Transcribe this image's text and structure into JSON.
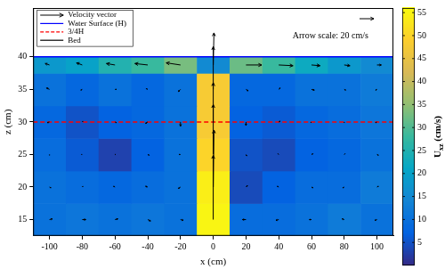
{
  "chart_data": {
    "type": "heatmap",
    "x_label": "x (cm)",
    "y_label": "z (cm)",
    "xlim": [
      -110,
      110
    ],
    "xticks": [
      -100,
      -80,
      -60,
      -40,
      -20,
      0,
      20,
      40,
      60,
      80,
      100
    ],
    "ylim": [
      12.5,
      47.5
    ],
    "yticks": [
      15,
      20,
      25,
      30,
      35,
      40
    ],
    "grid": false,
    "legend": "upper left",
    "x_edges": [
      -110,
      -90,
      -70,
      -50,
      -30,
      -10,
      10,
      30,
      50,
      70,
      90,
      110
    ],
    "z_edges": [
      12.5,
      17.5,
      22.5,
      27.5,
      32.5,
      37.5,
      40
    ],
    "cells": [
      [
        10,
        11,
        10,
        11,
        10,
        55,
        9,
        9,
        10,
        12,
        10
      ],
      [
        10,
        9,
        8,
        9,
        10,
        54,
        4,
        7,
        9,
        9,
        12
      ],
      [
        9,
        6,
        3,
        7,
        10,
        50,
        5,
        4,
        7,
        8,
        10
      ],
      [
        8,
        5,
        7,
        8,
        10,
        48,
        7,
        6,
        8,
        9,
        11
      ],
      [
        10,
        8,
        10,
        8,
        10,
        48,
        8,
        8,
        10,
        10,
        12
      ],
      [
        18,
        20,
        25,
        28,
        33,
        15,
        32,
        28,
        22,
        18,
        15
      ]
    ],
    "vectors": {
      "name": "Velocity vector",
      "color": "#000000",
      "u": [
        [
          4,
          5,
          4,
          4,
          4,
          0,
          -5,
          -4,
          -3,
          -3,
          -3
        ],
        [
          2,
          1,
          -2,
          -3,
          -3,
          1,
          2,
          -2,
          2,
          -2,
          2
        ],
        [
          0,
          -1,
          1,
          2,
          -2,
          0,
          1,
          -1,
          2,
          1,
          2
        ],
        [
          -3,
          1,
          2,
          -3,
          0,
          0,
          0,
          2,
          -1,
          0,
          -2
        ],
        [
          -4,
          -2,
          2,
          -2,
          -3,
          0,
          3,
          2,
          4,
          2,
          -2
        ],
        [
          -6,
          -8,
          -12,
          -18,
          -20,
          1,
          22,
          20,
          12,
          8,
          6
        ]
      ],
      "w": [
        [
          1,
          0,
          1,
          -2,
          -1,
          90,
          0,
          -1,
          0,
          1,
          -1
        ],
        [
          -1,
          1,
          1,
          1,
          -2,
          80,
          2,
          1,
          -1,
          -1,
          1
        ],
        [
          -1,
          0,
          0,
          -1,
          0,
          70,
          -2,
          1,
          1,
          1,
          -1
        ],
        [
          -1,
          1,
          -1,
          -2,
          -6,
          55,
          -5,
          1,
          -1,
          -1,
          -1
        ],
        [
          2,
          -1,
          0,
          1,
          -3,
          60,
          -2,
          2,
          -1,
          -1,
          -1
        ],
        [
          2,
          3,
          2,
          2,
          3,
          45,
          0,
          -1,
          -1,
          -1,
          0
        ]
      ]
    },
    "lines": [
      {
        "name": "Water Surface (H)",
        "color": "#0000ff",
        "line_style": "solid",
        "z": 40
      },
      {
        "name": "3/4H",
        "color": "#ff0000",
        "line_style": "dashed",
        "z": 30
      },
      {
        "name": "Bed",
        "color": "#000000",
        "line_style": "solid",
        "z": null
      }
    ],
    "annotation": {
      "text": "Arrow scale: 20 cm/s",
      "arrow_value": 20
    },
    "colorbar": {
      "label": "U",
      "label_subscript": "xz",
      "label_unit": "(cm/s)",
      "range": [
        0,
        56
      ],
      "ticks": [
        5,
        10,
        15,
        20,
        25,
        30,
        35,
        40,
        45,
        50,
        55
      ]
    }
  }
}
